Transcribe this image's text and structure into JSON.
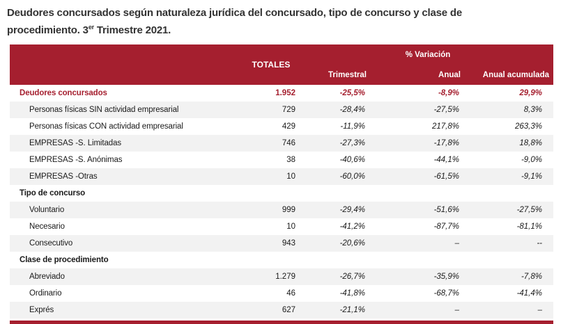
{
  "title": {
    "line1": "Deudores concursados según naturaleza jurídica del concursado, tipo de concurso y clase de",
    "line2_pre": "procedimiento. 3",
    "line2_sup": "er",
    "line2_post": " Trimestre 2021."
  },
  "colors": {
    "accent_red": "#A51F2F",
    "row_alt_gray": "#F2F2F2",
    "title_text": "#333333"
  },
  "table": {
    "header": {
      "totales": "TOTALES",
      "variacion": "% Variación",
      "sub": [
        "Trimestral",
        "Anual",
        "Anual acumulada"
      ]
    },
    "rows": [
      {
        "style": "highlight",
        "label": "Deudores concursados",
        "totales": "1.952",
        "trimestral": "-25,5%",
        "anual": "-8,9%",
        "acumulada": "29,9%"
      },
      {
        "style": "item",
        "label": "Personas físicas SIN actividad empresarial",
        "totales": "729",
        "trimestral": "-28,4%",
        "anual": "-27,5%",
        "acumulada": "8,3%"
      },
      {
        "style": "item",
        "label": "Personas físicas CON actividad empresarial",
        "totales": "429",
        "trimestral": "-11,9%",
        "anual": "217,8%",
        "acumulada": "263,3%"
      },
      {
        "style": "item",
        "label": "EMPRESAS -S. Limitadas",
        "totales": "746",
        "trimestral": "-27,3%",
        "anual": "-17,8%",
        "acumulada": "18,8%"
      },
      {
        "style": "item",
        "label": "EMPRESAS -S. Anónimas",
        "totales": "38",
        "trimestral": "-40,6%",
        "anual": "-44,1%",
        "acumulada": "-9,0%"
      },
      {
        "style": "item",
        "label": "EMPRESAS -Otras",
        "totales": "10",
        "trimestral": "-60,0%",
        "anual": "-61,5%",
        "acumulada": "-9,1%"
      },
      {
        "style": "section",
        "label": "Tipo de concurso",
        "totales": "",
        "trimestral": "",
        "anual": "",
        "acumulada": ""
      },
      {
        "style": "item",
        "label": "Voluntario",
        "totales": "999",
        "trimestral": "-29,4%",
        "anual": "-51,6%",
        "acumulada": "-27,5%"
      },
      {
        "style": "item",
        "label": "Necesario",
        "totales": "10",
        "trimestral": "-41,2%",
        "anual": "-87,7%",
        "acumulada": "-81,1%"
      },
      {
        "style": "item",
        "label": "Consecutivo",
        "totales": "943",
        "trimestral": "-20,6%",
        "anual": "–",
        "acumulada": "--"
      },
      {
        "style": "section",
        "label": "Clase de procedimiento",
        "totales": "",
        "trimestral": "",
        "anual": "",
        "acumulada": ""
      },
      {
        "style": "item",
        "label": "Abreviado",
        "totales": "1.279",
        "trimestral": "-26,7%",
        "anual": "-35,9%",
        "acumulada": "-7,8%"
      },
      {
        "style": "item",
        "label": "Ordinario",
        "totales": "46",
        "trimestral": "-41,8%",
        "anual": "-68,7%",
        "acumulada": "-41,4%"
      },
      {
        "style": "item",
        "label": "Exprés",
        "totales": "627",
        "trimestral": "-21,1%",
        "anual": "–",
        "acumulada": "–"
      }
    ]
  }
}
